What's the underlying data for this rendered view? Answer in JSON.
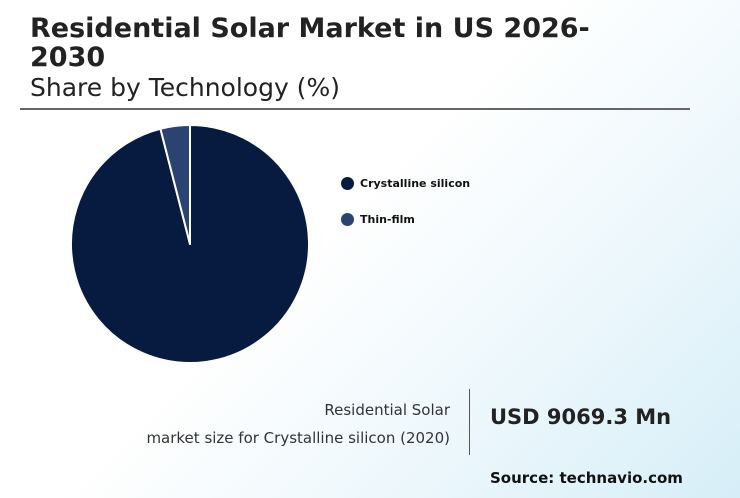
{
  "header": {
    "title": "Residential Solar Market in US 2026-2030",
    "subtitle": "Share by Technology (%)"
  },
  "chart_data": {
    "type": "pie",
    "categories": [
      "Crystalline silicon",
      "Thin-film"
    ],
    "values": [
      96,
      4
    ],
    "colors": [
      "#071b41",
      "#2b4370"
    ],
    "legend_position": "right",
    "start_angle": "top",
    "direction": "clockwise"
  },
  "stat": {
    "label_line1": "Residential Solar",
    "label_line2": "market size for Crystalline silicon (2020)",
    "value": "USD 9069.3 Mn"
  },
  "source": "Source: technavio.com"
}
